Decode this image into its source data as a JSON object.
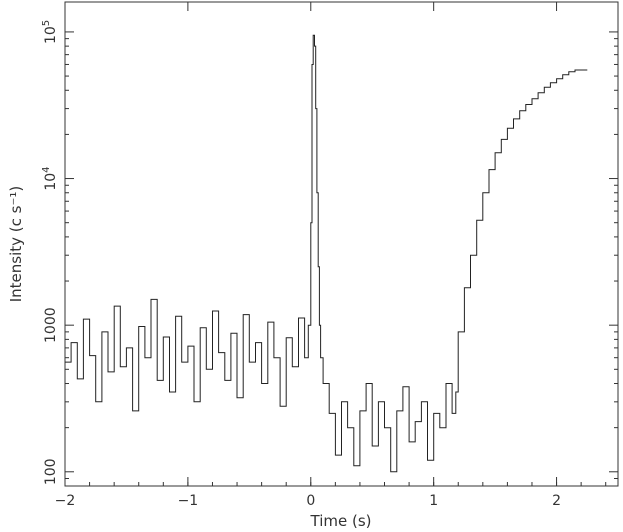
{
  "chart_data": {
    "type": "line",
    "xlabel": "Time (s)",
    "ylabel": "Intensity (c s⁻¹)",
    "xlim": [
      -2,
      2.5
    ],
    "ylim": [
      80,
      160000
    ],
    "yscale": "log",
    "grid": false,
    "x_ticks": [
      {
        "value": -2,
        "label": "−2"
      },
      {
        "value": -1,
        "label": "−1"
      },
      {
        "value": 0,
        "label": "0"
      },
      {
        "value": 1,
        "label": "1"
      },
      {
        "value": 2,
        "label": "2"
      }
    ],
    "y_ticks": [
      {
        "value": 100,
        "base": "100",
        "exp": ""
      },
      {
        "value": 1000,
        "base": "1000",
        "exp": ""
      },
      {
        "value": 10000,
        "base": "10",
        "exp": "4"
      },
      {
        "value": 100000,
        "base": "10",
        "exp": "5"
      }
    ],
    "series": [
      {
        "points": [
          [
            -2.0,
            560
          ],
          [
            -1.95,
            760
          ],
          [
            -1.9,
            430
          ],
          [
            -1.85,
            1100
          ],
          [
            -1.8,
            620
          ],
          [
            -1.75,
            300
          ],
          [
            -1.7,
            900
          ],
          [
            -1.65,
            480
          ],
          [
            -1.6,
            1350
          ],
          [
            -1.55,
            520
          ],
          [
            -1.5,
            700
          ],
          [
            -1.45,
            260
          ],
          [
            -1.4,
            980
          ],
          [
            -1.35,
            600
          ],
          [
            -1.3,
            1500
          ],
          [
            -1.25,
            420
          ],
          [
            -1.2,
            830
          ],
          [
            -1.15,
            350
          ],
          [
            -1.1,
            1150
          ],
          [
            -1.05,
            560
          ],
          [
            -1.0,
            720
          ],
          [
            -0.95,
            300
          ],
          [
            -0.9,
            960
          ],
          [
            -0.85,
            500
          ],
          [
            -0.8,
            1250
          ],
          [
            -0.75,
            650
          ],
          [
            -0.7,
            420
          ],
          [
            -0.65,
            880
          ],
          [
            -0.6,
            320
          ],
          [
            -0.55,
            1180
          ],
          [
            -0.5,
            560
          ],
          [
            -0.45,
            760
          ],
          [
            -0.4,
            400
          ],
          [
            -0.35,
            1050
          ],
          [
            -0.3,
            600
          ],
          [
            -0.25,
            280
          ],
          [
            -0.2,
            820
          ],
          [
            -0.15,
            520
          ],
          [
            -0.1,
            1120
          ],
          [
            -0.05,
            600
          ],
          [
            -0.02,
            1000
          ],
          [
            0.0,
            5000
          ],
          [
            0.01,
            60000
          ],
          [
            0.02,
            95000
          ],
          [
            0.03,
            80000
          ],
          [
            0.04,
            30000
          ],
          [
            0.05,
            8000
          ],
          [
            0.06,
            2500
          ],
          [
            0.07,
            1000
          ],
          [
            0.08,
            600
          ],
          [
            0.1,
            400
          ],
          [
            0.15,
            250
          ],
          [
            0.2,
            130
          ],
          [
            0.25,
            300
          ],
          [
            0.3,
            200
          ],
          [
            0.35,
            110
          ],
          [
            0.4,
            260
          ],
          [
            0.45,
            400
          ],
          [
            0.5,
            150
          ],
          [
            0.55,
            300
          ],
          [
            0.6,
            200
          ],
          [
            0.65,
            100
          ],
          [
            0.7,
            260
          ],
          [
            0.75,
            380
          ],
          [
            0.8,
            160
          ],
          [
            0.85,
            220
          ],
          [
            0.9,
            300
          ],
          [
            0.95,
            120
          ],
          [
            1.0,
            250
          ],
          [
            1.05,
            200
          ],
          [
            1.1,
            400
          ],
          [
            1.15,
            250
          ],
          [
            1.18,
            350
          ],
          [
            1.2,
            900
          ],
          [
            1.25,
            1800
          ],
          [
            1.3,
            3000
          ],
          [
            1.35,
            5200
          ],
          [
            1.4,
            8000
          ],
          [
            1.45,
            11500
          ],
          [
            1.5,
            15000
          ],
          [
            1.55,
            18500
          ],
          [
            1.6,
            22000
          ],
          [
            1.65,
            25500
          ],
          [
            1.7,
            29000
          ],
          [
            1.75,
            32000
          ],
          [
            1.8,
            35000
          ],
          [
            1.85,
            38500
          ],
          [
            1.9,
            42000
          ],
          [
            1.95,
            45000
          ],
          [
            2.0,
            48000
          ],
          [
            2.05,
            51000
          ],
          [
            2.1,
            53500
          ],
          [
            2.15,
            55000
          ],
          [
            2.2,
            55000
          ],
          [
            2.25,
            55000
          ]
        ]
      }
    ]
  }
}
